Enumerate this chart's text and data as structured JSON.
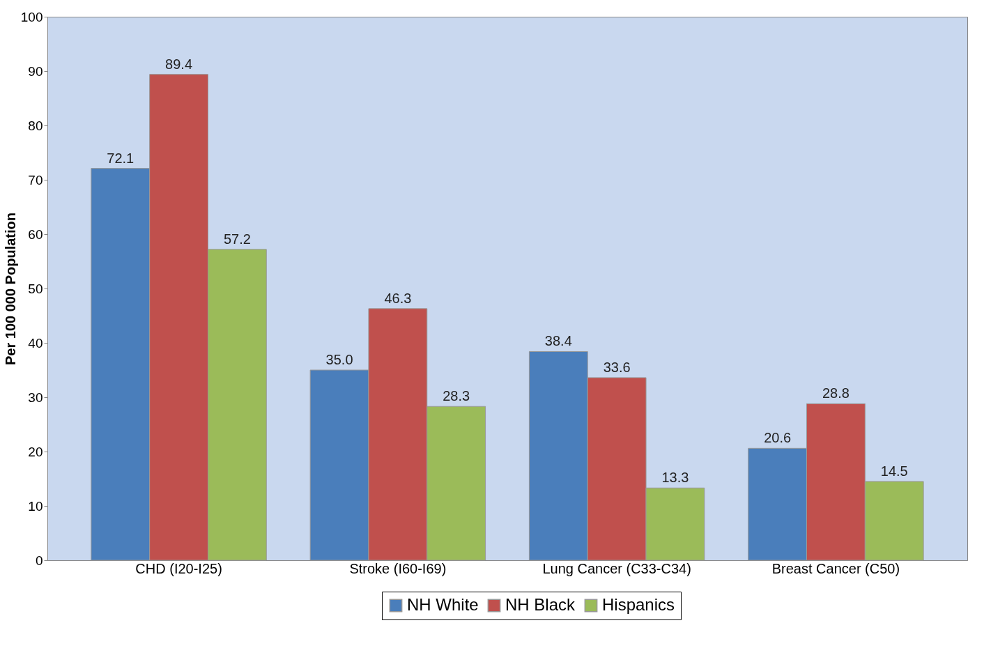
{
  "chart_data": {
    "type": "bar",
    "ylabel": "Per 100 000 Population",
    "categories": [
      "CHD (I20-I25)",
      "Stroke (I60-I69)",
      "Lung Cancer (C33-C34)",
      "Breast Cancer (C50)"
    ],
    "series": [
      {
        "name": "NH White",
        "color": "#4a7ebb",
        "values": [
          72.1,
          35.0,
          38.4,
          20.6
        ],
        "value_labels": [
          "72.1",
          "35.0",
          "38.4",
          "20.6"
        ]
      },
      {
        "name": "NH Black",
        "color": "#c0504d",
        "values": [
          89.4,
          46.3,
          33.6,
          28.8
        ],
        "value_labels": [
          "89.4",
          "46.3",
          "33.6",
          "28.8"
        ]
      },
      {
        "name": "Hispanics",
        "color": "#9bbb59",
        "values": [
          57.2,
          28.3,
          13.3,
          14.5
        ],
        "value_labels": [
          "57.2",
          "28.3",
          "13.3",
          "14.5"
        ]
      }
    ],
    "ylim": [
      0,
      100
    ],
    "yticks": [
      0,
      10,
      20,
      30,
      40,
      50,
      60,
      70,
      80,
      90,
      100
    ],
    "grid": false,
    "legend": "bottom"
  }
}
